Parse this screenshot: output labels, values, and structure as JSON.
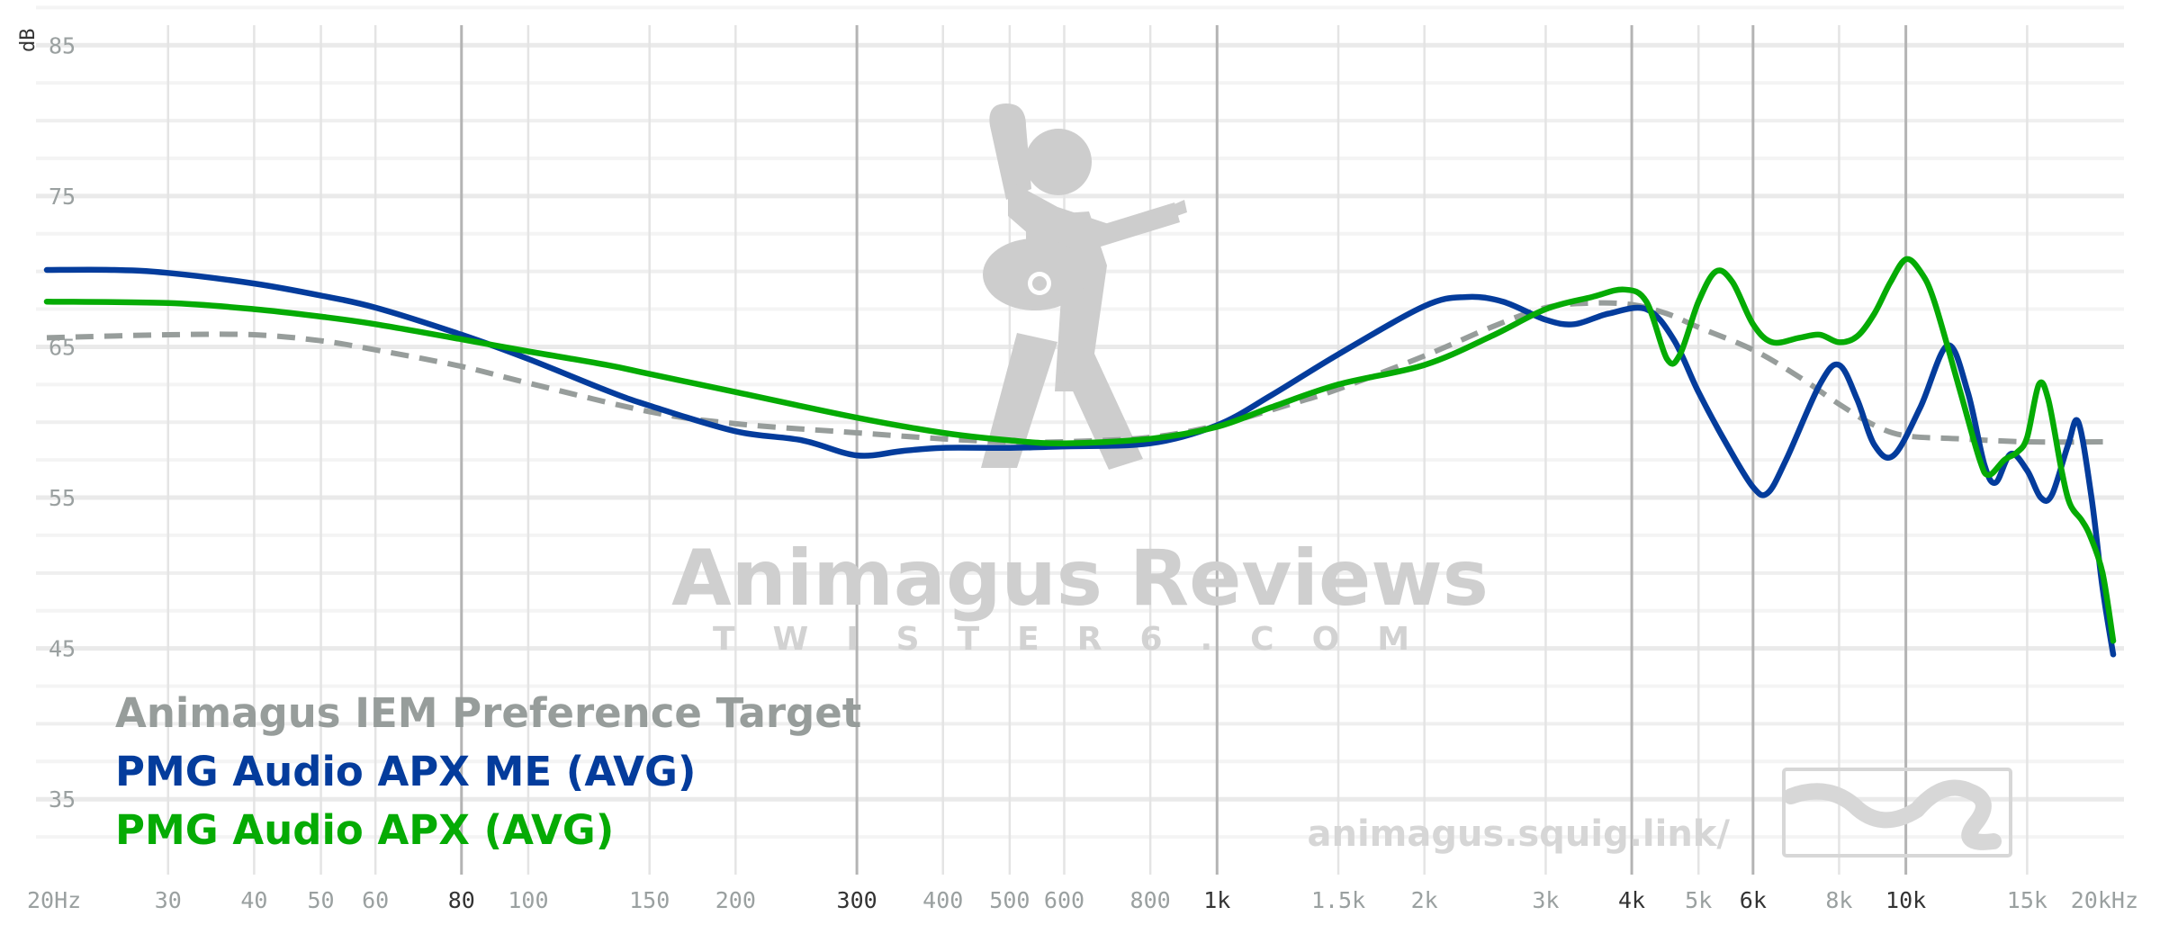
{
  "chart_data": {
    "type": "line",
    "ylabel": "dB",
    "ylim": [
      30,
      88
    ],
    "xlim": [
      20,
      20000
    ],
    "x_scale": "log",
    "y_ticks": [
      35,
      45,
      55,
      65,
      75,
      85
    ],
    "x_ticks": [
      {
        "f": 20,
        "label": "20Hz",
        "major": false
      },
      {
        "f": 30,
        "label": "30",
        "major": false
      },
      {
        "f": 40,
        "label": "40",
        "major": false
      },
      {
        "f": 50,
        "label": "50",
        "major": false
      },
      {
        "f": 60,
        "label": "60",
        "major": false
      },
      {
        "f": 80,
        "label": "80",
        "major": true
      },
      {
        "f": 100,
        "label": "100",
        "major": false
      },
      {
        "f": 150,
        "label": "150",
        "major": false
      },
      {
        "f": 200,
        "label": "200",
        "major": false
      },
      {
        "f": 300,
        "label": "300",
        "major": true
      },
      {
        "f": 400,
        "label": "400",
        "major": false
      },
      {
        "f": 500,
        "label": "500",
        "major": false
      },
      {
        "f": 600,
        "label": "600",
        "major": false
      },
      {
        "f": 800,
        "label": "800",
        "major": false
      },
      {
        "f": 1000,
        "label": "1k",
        "major": true
      },
      {
        "f": 1500,
        "label": "1.5k",
        "major": false
      },
      {
        "f": 2000,
        "label": "2k",
        "major": false
      },
      {
        "f": 3000,
        "label": "3k",
        "major": false
      },
      {
        "f": 4000,
        "label": "4k",
        "major": true
      },
      {
        "f": 5000,
        "label": "5k",
        "major": false
      },
      {
        "f": 6000,
        "label": "6k",
        "major": true
      },
      {
        "f": 8000,
        "label": "8k",
        "major": false
      },
      {
        "f": 10000,
        "label": "10k",
        "major": true
      },
      {
        "f": 15000,
        "label": "15k",
        "major": false
      },
      {
        "f": 20000,
        "label": "20kHz",
        "major": false
      }
    ],
    "grid": true,
    "legend_position": "bottom-left",
    "series": [
      {
        "name": "Animagus IEM Preference Target",
        "color": "#979d9b",
        "dashed": true,
        "points": [
          [
            20,
            65.6
          ],
          [
            30,
            65.8
          ],
          [
            40,
            65.8
          ],
          [
            50,
            65.4
          ],
          [
            60,
            64.8
          ],
          [
            80,
            63.7
          ],
          [
            100,
            62.6
          ],
          [
            150,
            60.7
          ],
          [
            200,
            59.9
          ],
          [
            300,
            59.3
          ],
          [
            400,
            58.9
          ],
          [
            500,
            58.7
          ],
          [
            600,
            58.7
          ],
          [
            800,
            59
          ],
          [
            1000,
            59.8
          ],
          [
            1300,
            61.3
          ],
          [
            1500,
            62.2
          ],
          [
            2000,
            64.4
          ],
          [
            2500,
            66.3
          ],
          [
            3000,
            67.6
          ],
          [
            3500,
            67.9
          ],
          [
            4000,
            67.8
          ],
          [
            4500,
            67.2
          ],
          [
            5000,
            66.3
          ],
          [
            6000,
            64.8
          ],
          [
            7000,
            63
          ],
          [
            8000,
            61.2
          ],
          [
            9000,
            59.8
          ],
          [
            10000,
            59.1
          ],
          [
            12000,
            58.9
          ],
          [
            15000,
            58.7
          ],
          [
            20000,
            58.7
          ]
        ]
      },
      {
        "name": "PMG Audio APX ME (AVG)",
        "color": "#043c9c",
        "dashed": false,
        "points": [
          [
            20,
            70.1
          ],
          [
            25,
            70.1
          ],
          [
            30,
            69.9
          ],
          [
            40,
            69.2
          ],
          [
            50,
            68.4
          ],
          [
            60,
            67.6
          ],
          [
            80,
            65.8
          ],
          [
            100,
            64.2
          ],
          [
            130,
            62.1
          ],
          [
            150,
            61.1
          ],
          [
            200,
            59.4
          ],
          [
            250,
            58.8
          ],
          [
            300,
            57.8
          ],
          [
            350,
            58.1
          ],
          [
            400,
            58.3
          ],
          [
            500,
            58.3
          ],
          [
            600,
            58.4
          ],
          [
            800,
            58.6
          ],
          [
            1000,
            59.8
          ],
          [
            1200,
            61.8
          ],
          [
            1500,
            64.5
          ],
          [
            2000,
            67.7
          ],
          [
            2300,
            68.3
          ],
          [
            2600,
            68
          ],
          [
            3000,
            66.8
          ],
          [
            3300,
            66.5
          ],
          [
            3700,
            67.2
          ],
          [
            4200,
            67.5
          ],
          [
            4600,
            65.5
          ],
          [
            5000,
            62
          ],
          [
            5500,
            58.5
          ],
          [
            6000,
            55.7
          ],
          [
            6300,
            55.3
          ],
          [
            6700,
            57.5
          ],
          [
            7500,
            62.5
          ],
          [
            8000,
            63.8
          ],
          [
            8500,
            61.5
          ],
          [
            9000,
            58.5
          ],
          [
            9600,
            57.8
          ],
          [
            10500,
            61
          ],
          [
            11500,
            65.1
          ],
          [
            12300,
            62
          ],
          [
            13000,
            57.2
          ],
          [
            13500,
            56
          ],
          [
            14200,
            57.9
          ],
          [
            15000,
            56.8
          ],
          [
            15700,
            55
          ],
          [
            16300,
            55.2
          ],
          [
            17200,
            58.5
          ],
          [
            17800,
            60
          ],
          [
            18600,
            55
          ],
          [
            19300,
            49
          ],
          [
            20000,
            44.6
          ]
        ]
      },
      {
        "name": "PMG Audio APX (AVG)",
        "color": "#05ab04",
        "dashed": false,
        "points": [
          [
            20,
            68
          ],
          [
            30,
            67.9
          ],
          [
            40,
            67.5
          ],
          [
            50,
            67
          ],
          [
            60,
            66.5
          ],
          [
            80,
            65.5
          ],
          [
            100,
            64.7
          ],
          [
            130,
            63.8
          ],
          [
            150,
            63.2
          ],
          [
            200,
            62
          ],
          [
            300,
            60.3
          ],
          [
            400,
            59.3
          ],
          [
            500,
            58.8
          ],
          [
            600,
            58.6
          ],
          [
            800,
            58.9
          ],
          [
            1000,
            59.7
          ],
          [
            1200,
            61
          ],
          [
            1500,
            62.5
          ],
          [
            2000,
            63.8
          ],
          [
            2500,
            65.7
          ],
          [
            3000,
            67.5
          ],
          [
            3500,
            68.3
          ],
          [
            3900,
            68.8
          ],
          [
            4200,
            68
          ],
          [
            4500,
            64.2
          ],
          [
            4700,
            64.5
          ],
          [
            5000,
            68
          ],
          [
            5300,
            70
          ],
          [
            5600,
            69.3
          ],
          [
            6000,
            66.5
          ],
          [
            6400,
            65.3
          ],
          [
            7000,
            65.6
          ],
          [
            7500,
            65.8
          ],
          [
            8000,
            65.3
          ],
          [
            8500,
            65.7
          ],
          [
            9000,
            67.2
          ],
          [
            9500,
            69.3
          ],
          [
            10000,
            70.8
          ],
          [
            10500,
            70
          ],
          [
            11000,
            68
          ],
          [
            12000,
            62
          ],
          [
            12800,
            57.5
          ],
          [
            13200,
            56.5
          ],
          [
            13900,
            57.5
          ],
          [
            14500,
            58
          ],
          [
            15000,
            59
          ],
          [
            15600,
            62.5
          ],
          [
            16100,
            61.5
          ],
          [
            16800,
            57
          ],
          [
            17300,
            54.6
          ],
          [
            18000,
            53.5
          ],
          [
            18500,
            52.5
          ],
          [
            19300,
            50
          ],
          [
            20000,
            45.5
          ]
        ]
      }
    ]
  },
  "watermark": {
    "title": "Animagus Reviews",
    "subtitle": "TWISTER6.COM",
    "url": "animagus.squig.link/"
  }
}
